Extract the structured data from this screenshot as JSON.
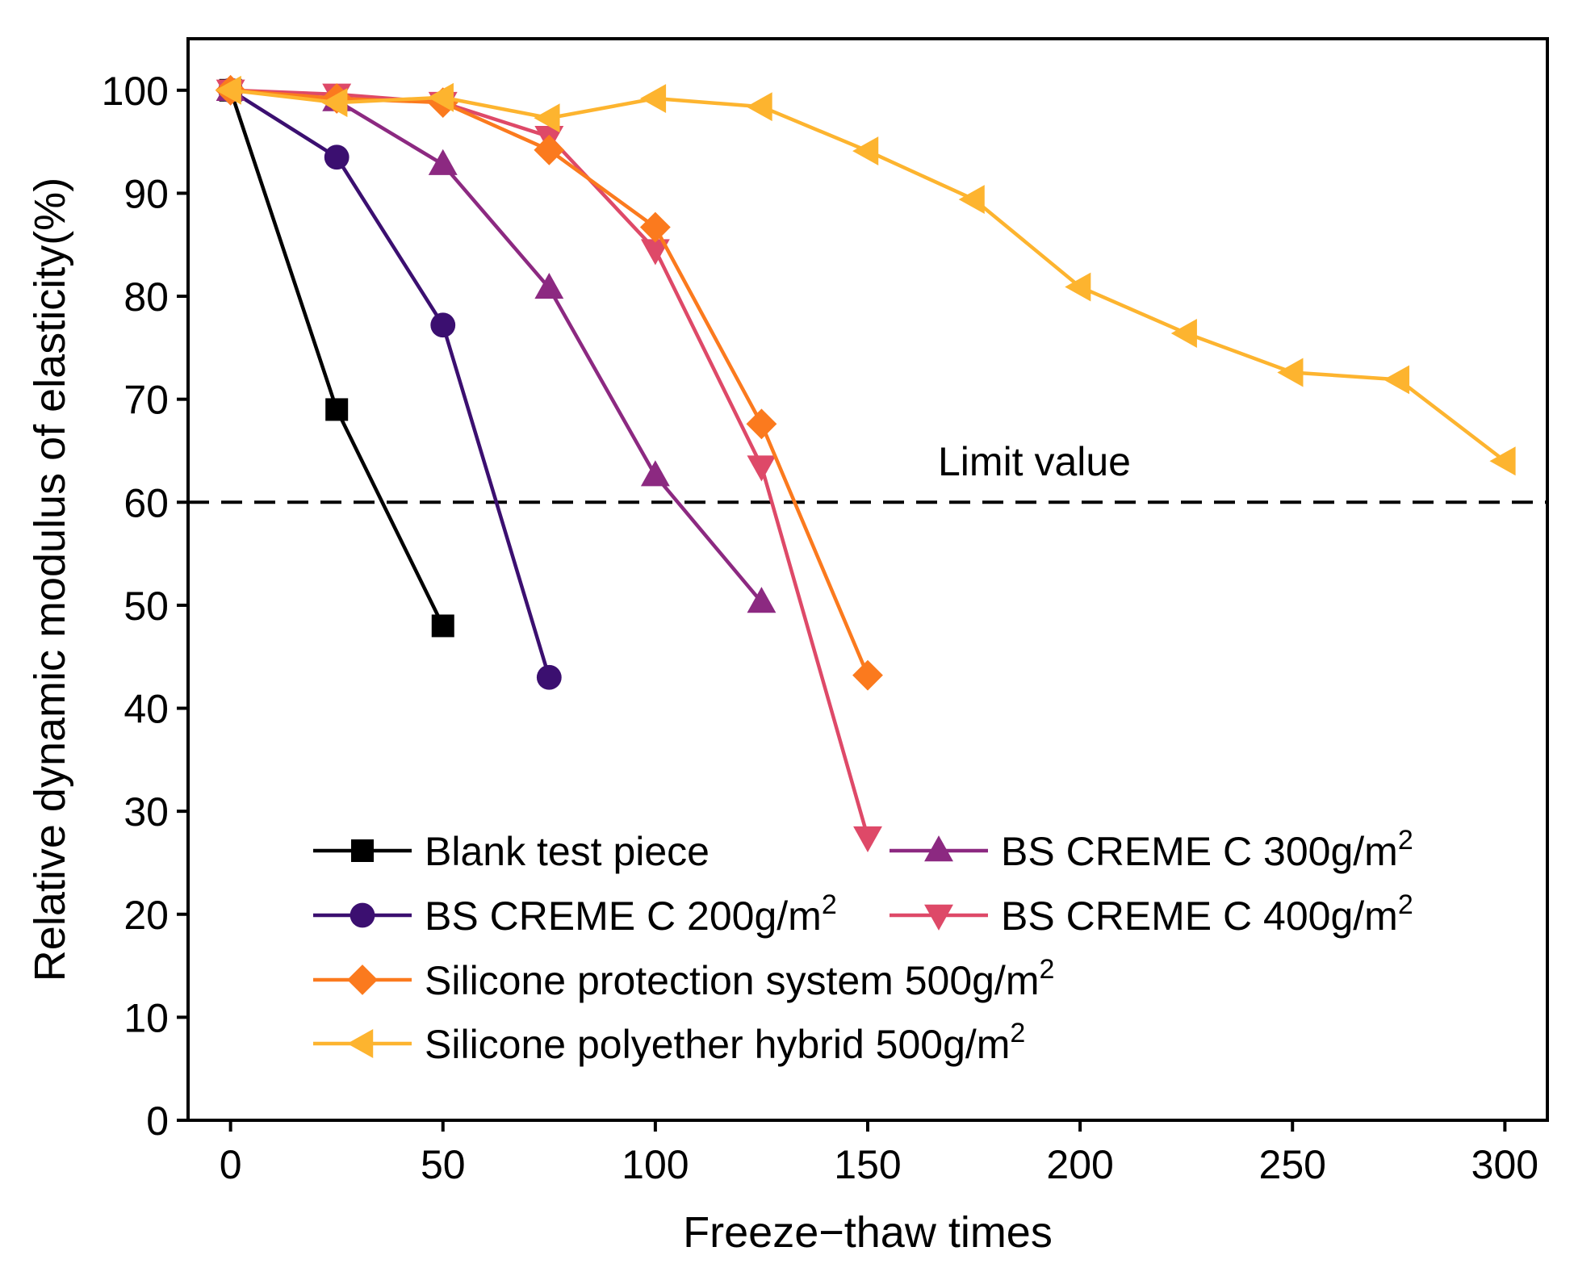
{
  "chart_data": {
    "type": "line",
    "xlabel": "Freeze−thaw times",
    "ylabel": "Relative dynamic modulus of elasticity(%)",
    "xlim": [
      -10,
      310
    ],
    "ylim": [
      0,
      105
    ],
    "xticks": [
      0,
      50,
      100,
      150,
      200,
      250,
      300
    ],
    "yticks": [
      0,
      10,
      20,
      30,
      40,
      50,
      60,
      70,
      80,
      90,
      100
    ],
    "grid": false,
    "legend_position": "bottom-left",
    "reference_line": {
      "y": 60,
      "label": "Limit value",
      "style": "dashed",
      "color": "#000000"
    },
    "series": [
      {
        "name": "Blank test piece",
        "marker": "square",
        "color": "#000000",
        "x": [
          0,
          25,
          50
        ],
        "y": [
          100,
          69,
          48
        ]
      },
      {
        "name": "BS CREME C 200g/m",
        "superscript": "2",
        "marker": "circle",
        "color": "#3B0F70",
        "x": [
          0,
          25,
          50,
          75
        ],
        "y": [
          100,
          93.5,
          77.2,
          43
        ]
      },
      {
        "name": "BS CREME C 300g/m",
        "superscript": "2",
        "marker": "triangle-up",
        "color": "#8C2981",
        "x": [
          0,
          25,
          50,
          75,
          100,
          125
        ],
        "y": [
          100,
          99,
          92.8,
          80.8,
          62.6,
          50.3
        ]
      },
      {
        "name": "BS CREME C 400g/m",
        "superscript": "2",
        "marker": "triangle-down",
        "color": "#DE4968",
        "x": [
          0,
          25,
          50,
          75,
          100,
          125,
          150
        ],
        "y": [
          100,
          99.6,
          98.8,
          95.5,
          84.5,
          63.5,
          27.5
        ]
      },
      {
        "name": "Silicone protection system 500g/m",
        "superscript": "2",
        "marker": "diamond",
        "color": "#FB7A1E",
        "x": [
          0,
          25,
          50,
          75,
          100,
          125,
          150
        ],
        "y": [
          100,
          99.2,
          98.8,
          94.2,
          86.7,
          67.6,
          43.2
        ]
      },
      {
        "name": "Silicone polyether hybrid 500g/m",
        "superscript": "2",
        "marker": "triangle-left",
        "color": "#FDB42F",
        "x": [
          0,
          25,
          50,
          75,
          100,
          125,
          150,
          175,
          200,
          225,
          250,
          275,
          300
        ],
        "y": [
          100,
          98.8,
          99.3,
          97.3,
          99.2,
          98.4,
          94.1,
          89.4,
          80.9,
          76.4,
          72.6,
          71.9,
          64
        ]
      }
    ]
  }
}
